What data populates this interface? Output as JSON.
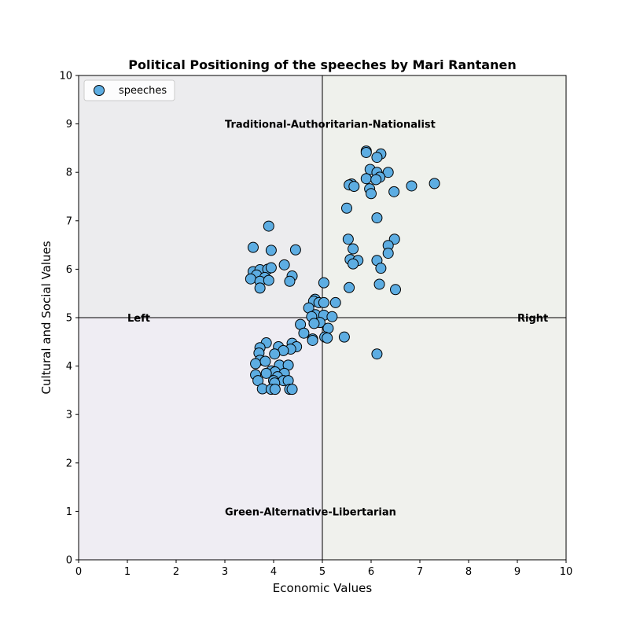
{
  "chart_data": {
    "type": "scatter",
    "title": "Political Positioning of the speeches by Mari Rantanen",
    "xlabel": "Economic Values",
    "ylabel": "Cultural and Social Values",
    "xlim": [
      0,
      10
    ],
    "ylim": [
      0,
      10
    ],
    "xticks": [
      0,
      1,
      2,
      3,
      4,
      5,
      6,
      7,
      8,
      9,
      10
    ],
    "yticks": [
      0,
      1,
      2,
      3,
      4,
      5,
      6,
      7,
      8,
      9,
      10
    ],
    "grid": false,
    "legend_position": "top-left",
    "center_lines": {
      "x": 5,
      "y": 5
    },
    "quadrant_colors": {
      "top_left": "#ececee",
      "top_right": "#eff1ec",
      "bottom_left": "#efedf3",
      "bottom_right": "#f0f1ed"
    },
    "annotations": [
      {
        "text": "Traditional-Authoritarian-Nationalist",
        "x": 3.0,
        "y": 9.0
      },
      {
        "text": "Green-Alternative-Libertarian",
        "x": 3.0,
        "y": 1.0
      },
      {
        "text": "Left",
        "x": 1.0,
        "y": 5.0
      },
      {
        "text": "Right",
        "x": 9.0,
        "y": 5.0
      }
    ],
    "series": [
      {
        "name": "speeches",
        "color": "#5dade2",
        "edgecolor": "#000000",
        "points": [
          [
            5.9,
            8.44
          ],
          [
            5.9,
            8.41
          ],
          [
            6.2,
            8.38
          ],
          [
            6.12,
            8.31
          ],
          [
            5.98,
            8.06
          ],
          [
            6.12,
            8.0
          ],
          [
            6.35,
            8.0
          ],
          [
            6.18,
            7.9
          ],
          [
            5.9,
            7.87
          ],
          [
            6.1,
            7.85
          ],
          [
            5.6,
            7.76
          ],
          [
            5.55,
            7.74
          ],
          [
            5.65,
            7.71
          ],
          [
            5.97,
            7.66
          ],
          [
            6.0,
            7.56
          ],
          [
            6.47,
            7.6
          ],
          [
            6.83,
            7.72
          ],
          [
            7.3,
            7.77
          ],
          [
            5.5,
            7.26
          ],
          [
            6.12,
            7.06
          ],
          [
            5.53,
            6.62
          ],
          [
            6.48,
            6.62
          ],
          [
            6.35,
            6.49
          ],
          [
            5.63,
            6.42
          ],
          [
            6.35,
            6.33
          ],
          [
            5.57,
            6.2
          ],
          [
            5.73,
            6.18
          ],
          [
            6.12,
            6.18
          ],
          [
            5.63,
            6.11
          ],
          [
            6.2,
            6.02
          ],
          [
            5.55,
            5.62
          ],
          [
            6.17,
            5.69
          ],
          [
            6.5,
            5.58
          ],
          [
            6.12,
            4.25
          ],
          [
            5.45,
            4.6
          ],
          [
            3.9,
            6.89
          ],
          [
            3.58,
            6.45
          ],
          [
            3.95,
            6.39
          ],
          [
            4.45,
            6.4
          ],
          [
            4.22,
            6.09
          ],
          [
            3.58,
            5.95
          ],
          [
            3.72,
            5.99
          ],
          [
            3.88,
            6.0
          ],
          [
            3.95,
            6.03
          ],
          [
            3.65,
            5.88
          ],
          [
            3.53,
            5.8
          ],
          [
            3.82,
            5.83
          ],
          [
            3.72,
            5.75
          ],
          [
            3.9,
            5.77
          ],
          [
            4.38,
            5.86
          ],
          [
            4.33,
            5.75
          ],
          [
            3.72,
            5.61
          ],
          [
            5.03,
            5.72
          ],
          [
            4.85,
            5.38
          ],
          [
            4.82,
            5.34
          ],
          [
            4.93,
            5.31
          ],
          [
            5.03,
            5.31
          ],
          [
            5.27,
            5.31
          ],
          [
            4.72,
            5.2
          ],
          [
            4.86,
            5.06
          ],
          [
            4.78,
            5.02
          ],
          [
            5.03,
            5.05
          ],
          [
            5.2,
            5.02
          ],
          [
            4.95,
            4.9
          ],
          [
            4.83,
            4.88
          ],
          [
            4.55,
            4.86
          ],
          [
            5.12,
            4.78
          ],
          [
            4.62,
            4.68
          ],
          [
            5.05,
            4.6
          ],
          [
            5.1,
            4.58
          ],
          [
            4.8,
            4.56
          ],
          [
            4.8,
            4.53
          ],
          [
            3.85,
            4.48
          ],
          [
            4.38,
            4.47
          ],
          [
            4.1,
            4.4
          ],
          [
            4.47,
            4.4
          ],
          [
            3.72,
            4.38
          ],
          [
            4.35,
            4.35
          ],
          [
            4.2,
            4.32
          ],
          [
            3.7,
            4.27
          ],
          [
            4.02,
            4.25
          ],
          [
            3.72,
            4.12
          ],
          [
            3.63,
            4.05
          ],
          [
            3.83,
            4.1
          ],
          [
            4.12,
            4.02
          ],
          [
            4.3,
            4.02
          ],
          [
            3.95,
            3.9
          ],
          [
            4.03,
            3.88
          ],
          [
            3.85,
            3.85
          ],
          [
            4.22,
            3.85
          ],
          [
            3.63,
            3.82
          ],
          [
            4.08,
            3.78
          ],
          [
            4.0,
            3.7
          ],
          [
            3.68,
            3.7
          ],
          [
            4.2,
            3.7
          ],
          [
            4.3,
            3.7
          ],
          [
            4.02,
            3.65
          ],
          [
            3.77,
            3.53
          ],
          [
            3.95,
            3.52
          ],
          [
            4.03,
            3.52
          ],
          [
            4.33,
            3.52
          ],
          [
            4.38,
            3.52
          ]
        ]
      }
    ]
  }
}
